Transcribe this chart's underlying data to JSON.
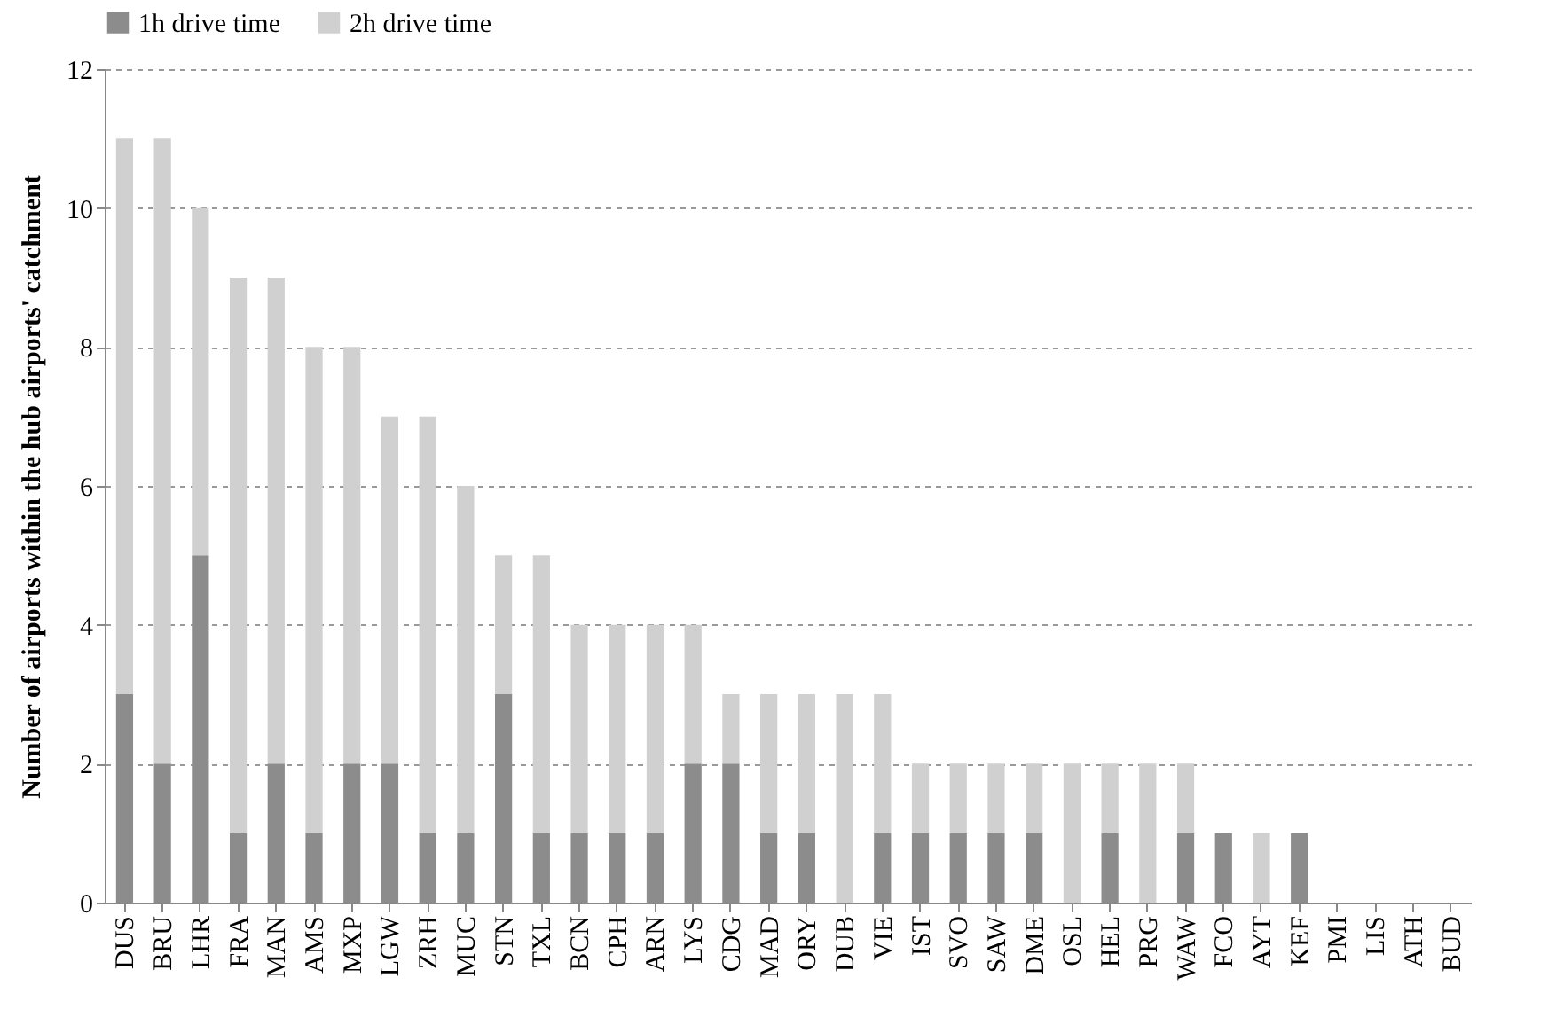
{
  "chart_data": {
    "type": "bar",
    "stacked": true,
    "ylabel": "Number of airports within the hub airports' catchment",
    "categories": [
      "DUS",
      "BRU",
      "LHR",
      "FRA",
      "MAN",
      "AMS",
      "MXP",
      "LGW",
      "ZRH",
      "MUC",
      "STN",
      "TXL",
      "BCN",
      "CPH",
      "ARN",
      "LYS",
      "CDG",
      "MAD",
      "ORY",
      "DUB",
      "VIE",
      "IST",
      "SVO",
      "SAW",
      "DME",
      "OSL",
      "HEL",
      "PRG",
      "WAW",
      "FCO",
      "AYT",
      "KEF",
      "PMI",
      "LIS",
      "ATH",
      "BUD"
    ],
    "series": [
      {
        "name": "1h drive time",
        "color": "#8c8c8c",
        "values": [
          3,
          2,
          5,
          1,
          2,
          1,
          2,
          2,
          1,
          1,
          3,
          1,
          1,
          1,
          1,
          2,
          2,
          1,
          1,
          0,
          1,
          1,
          1,
          1,
          1,
          0,
          1,
          0,
          1,
          1,
          0,
          1,
          0,
          0,
          0,
          0
        ]
      },
      {
        "name": "2h drive time",
        "color": "#d0d0d0",
        "values": [
          8,
          9,
          5,
          8,
          7,
          7,
          6,
          5,
          6,
          5,
          2,
          4,
          3,
          3,
          3,
          2,
          1,
          2,
          2,
          3,
          2,
          1,
          1,
          1,
          1,
          2,
          1,
          2,
          1,
          0,
          1,
          0,
          0,
          0,
          0,
          0
        ]
      }
    ],
    "ylim": [
      0,
      12
    ],
    "yticks": [
      0,
      2,
      4,
      6,
      8,
      10,
      12
    ],
    "grid": "y",
    "legend": "top"
  }
}
